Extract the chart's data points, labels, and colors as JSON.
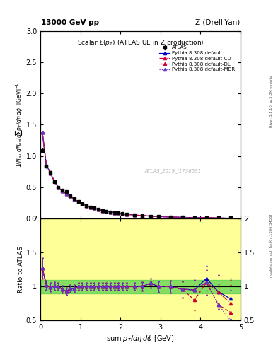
{
  "title_top": "13000 GeV pp",
  "title_right": "Z (Drell-Yan)",
  "plot_title": "Scalar Σ(p_{T}) (ATLAS UE in Z production)",
  "xlabel": "sum p_{T}/dη dϕ [GeV]",
  "ylabel": "1/N_{ev} dN_{ev}/dsum p_{T}/dη dϕ  [GeV]⁻¹",
  "ylabel_ratio": "Ratio to ATLAS",
  "watermark": "ATLAS_2019_I1736531",
  "rivet_label": "Rivet 3.1.10, ≥ 3.3M events",
  "arxiv_label": "mcplots.cern.ch [arXiv:1306.3436]",
  "xlim": [
    0,
    5.0
  ],
  "ylim_main": [
    0,
    3.0
  ],
  "ylim_ratio": [
    0.5,
    2.0
  ],
  "atlas_x": [
    0.05,
    0.15,
    0.25,
    0.35,
    0.45,
    0.55,
    0.65,
    0.75,
    0.85,
    0.95,
    1.05,
    1.15,
    1.25,
    1.35,
    1.45,
    1.55,
    1.65,
    1.75,
    1.85,
    1.95,
    2.05,
    2.15,
    2.35,
    2.55,
    2.75,
    2.95,
    3.25,
    3.55,
    3.85,
    4.15,
    4.45,
    4.75
  ],
  "atlas_y": [
    1.09,
    0.84,
    0.74,
    0.59,
    0.5,
    0.46,
    0.43,
    0.37,
    0.32,
    0.27,
    0.24,
    0.21,
    0.19,
    0.17,
    0.15,
    0.13,
    0.12,
    0.11,
    0.1,
    0.09,
    0.08,
    0.07,
    0.06,
    0.05,
    0.04,
    0.035,
    0.028,
    0.023,
    0.019,
    0.016,
    0.013,
    0.011
  ],
  "atlas_yerr": [
    0.03,
    0.02,
    0.02,
    0.015,
    0.012,
    0.01,
    0.01,
    0.009,
    0.008,
    0.007,
    0.006,
    0.005,
    0.005,
    0.004,
    0.004,
    0.003,
    0.003,
    0.003,
    0.002,
    0.002,
    0.002,
    0.002,
    0.0015,
    0.0013,
    0.001,
    0.001,
    0.0008,
    0.0007,
    0.0006,
    0.0005,
    0.0004,
    0.0004
  ],
  "pythia_x": [
    0.05,
    0.15,
    0.25,
    0.35,
    0.45,
    0.55,
    0.65,
    0.75,
    0.85,
    0.95,
    1.05,
    1.15,
    1.25,
    1.35,
    1.45,
    1.55,
    1.65,
    1.75,
    1.85,
    1.95,
    2.05,
    2.15,
    2.35,
    2.55,
    2.75,
    2.95,
    3.25,
    3.55,
    3.85,
    4.15,
    4.45,
    4.75
  ],
  "pythia_default_y": [
    1.38,
    0.86,
    0.73,
    0.6,
    0.5,
    0.44,
    0.4,
    0.36,
    0.31,
    0.27,
    0.24,
    0.21,
    0.19,
    0.17,
    0.15,
    0.13,
    0.12,
    0.11,
    0.1,
    0.09,
    0.08,
    0.07,
    0.06,
    0.05,
    0.042,
    0.035,
    0.028,
    0.022,
    0.018,
    0.018,
    0.012,
    0.009
  ],
  "pythia_cd_y": [
    1.38,
    0.86,
    0.73,
    0.6,
    0.5,
    0.44,
    0.4,
    0.36,
    0.31,
    0.27,
    0.24,
    0.21,
    0.19,
    0.17,
    0.15,
    0.13,
    0.12,
    0.11,
    0.1,
    0.09,
    0.08,
    0.07,
    0.06,
    0.05,
    0.042,
    0.035,
    0.028,
    0.022,
    0.018,
    0.017,
    0.012,
    0.009
  ],
  "pythia_dl_y": [
    1.38,
    0.86,
    0.73,
    0.6,
    0.5,
    0.44,
    0.4,
    0.36,
    0.31,
    0.27,
    0.24,
    0.21,
    0.19,
    0.17,
    0.15,
    0.13,
    0.12,
    0.11,
    0.1,
    0.09,
    0.08,
    0.07,
    0.06,
    0.05,
    0.042,
    0.035,
    0.028,
    0.022,
    0.018,
    0.017,
    0.012,
    0.009
  ],
  "pythia_mbr_y": [
    1.38,
    0.86,
    0.73,
    0.6,
    0.5,
    0.44,
    0.4,
    0.36,
    0.31,
    0.27,
    0.24,
    0.21,
    0.19,
    0.17,
    0.15,
    0.13,
    0.12,
    0.11,
    0.1,
    0.09,
    0.08,
    0.07,
    0.06,
    0.05,
    0.042,
    0.035,
    0.028,
    0.022,
    0.018,
    0.017,
    0.012,
    0.007
  ],
  "ratio_default_y": [
    1.27,
    1.02,
    0.99,
    1.01,
    1.0,
    0.96,
    0.93,
    0.97,
    0.97,
    1.0,
    1.0,
    1.0,
    1.0,
    1.0,
    1.0,
    1.0,
    1.0,
    1.0,
    1.0,
    1.0,
    1.0,
    1.0,
    1.0,
    1.0,
    1.05,
    1.0,
    1.0,
    0.96,
    0.95,
    1.12,
    0.92,
    0.82
  ],
  "ratio_cd_y": [
    1.27,
    1.02,
    0.99,
    1.01,
    1.0,
    0.96,
    0.93,
    0.97,
    0.97,
    1.0,
    1.0,
    1.0,
    1.0,
    1.0,
    1.0,
    1.0,
    1.0,
    1.0,
    1.0,
    1.0,
    1.0,
    1.0,
    1.0,
    1.0,
    1.05,
    1.0,
    1.0,
    0.96,
    0.95,
    1.06,
    0.92,
    0.75
  ],
  "ratio_dl_y": [
    1.27,
    1.02,
    0.99,
    1.01,
    1.0,
    0.96,
    0.93,
    0.97,
    0.97,
    1.0,
    1.0,
    1.0,
    1.0,
    1.0,
    1.0,
    1.0,
    1.0,
    1.0,
    1.0,
    1.0,
    1.0,
    1.0,
    1.0,
    1.0,
    1.05,
    1.0,
    1.0,
    0.96,
    0.8,
    1.06,
    0.73,
    0.62
  ],
  "ratio_mbr_y": [
    1.27,
    1.02,
    0.99,
    1.01,
    1.0,
    0.96,
    0.93,
    0.97,
    0.97,
    1.0,
    1.0,
    1.0,
    1.0,
    1.0,
    1.0,
    1.0,
    1.0,
    1.0,
    1.0,
    1.0,
    1.0,
    1.0,
    1.0,
    1.0,
    1.05,
    1.0,
    1.0,
    0.96,
    0.95,
    1.06,
    0.73,
    0.5
  ],
  "ratio_default_yerr": [
    0.15,
    0.07,
    0.06,
    0.06,
    0.05,
    0.05,
    0.05,
    0.05,
    0.05,
    0.05,
    0.05,
    0.05,
    0.05,
    0.05,
    0.05,
    0.05,
    0.05,
    0.05,
    0.05,
    0.05,
    0.05,
    0.05,
    0.05,
    0.06,
    0.07,
    0.08,
    0.09,
    0.12,
    0.15,
    0.18,
    0.25,
    0.3
  ],
  "ratio_cd_yerr": [
    0.15,
    0.07,
    0.06,
    0.06,
    0.05,
    0.05,
    0.05,
    0.05,
    0.05,
    0.05,
    0.05,
    0.05,
    0.05,
    0.05,
    0.05,
    0.05,
    0.05,
    0.05,
    0.05,
    0.05,
    0.05,
    0.05,
    0.05,
    0.06,
    0.07,
    0.08,
    0.09,
    0.12,
    0.15,
    0.18,
    0.25,
    0.35
  ],
  "ratio_dl_yerr": [
    0.15,
    0.07,
    0.06,
    0.06,
    0.05,
    0.05,
    0.05,
    0.05,
    0.05,
    0.05,
    0.05,
    0.05,
    0.05,
    0.05,
    0.05,
    0.05,
    0.05,
    0.05,
    0.05,
    0.05,
    0.05,
    0.05,
    0.05,
    0.06,
    0.07,
    0.08,
    0.09,
    0.12,
    0.15,
    0.18,
    0.25,
    0.4
  ],
  "ratio_mbr_yerr": [
    0.15,
    0.07,
    0.06,
    0.06,
    0.05,
    0.05,
    0.05,
    0.05,
    0.05,
    0.05,
    0.05,
    0.05,
    0.05,
    0.05,
    0.05,
    0.05,
    0.05,
    0.05,
    0.05,
    0.05,
    0.05,
    0.05,
    0.05,
    0.06,
    0.07,
    0.08,
    0.09,
    0.12,
    0.15,
    0.18,
    0.3,
    0.45
  ],
  "color_default": "#0000cc",
  "color_cd": "#cc0033",
  "color_dl": "#cc0033",
  "color_mbr": "#6633cc",
  "bg_yellow": "#ffff44",
  "bg_green": "#44cc44"
}
